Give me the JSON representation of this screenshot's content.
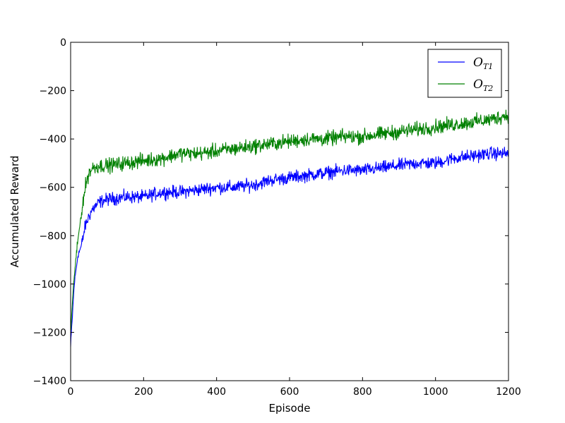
{
  "chart_data": {
    "type": "line",
    "xlabel": "Episode",
    "ylabel": "Accumulated Reward",
    "xlim": [
      0,
      1200
    ],
    "ylim": [
      -1400,
      0
    ],
    "xticks": [
      0,
      200,
      400,
      600,
      800,
      1000,
      1200
    ],
    "yticks": [
      0,
      -200,
      -400,
      -600,
      -800,
      -1000,
      -1200,
      -1400
    ],
    "grid": false,
    "legend_position": "top-right",
    "series": [
      {
        "name": "O_T1",
        "legend_main": "O",
        "legend_sub": "T1",
        "color": "#0000ff",
        "points": [
          [
            0,
            -1260
          ],
          [
            10,
            -1000
          ],
          [
            20,
            -880
          ],
          [
            30,
            -840
          ],
          [
            40,
            -760
          ],
          [
            50,
            -720
          ],
          [
            60,
            -690
          ],
          [
            80,
            -660
          ],
          [
            100,
            -650
          ],
          [
            150,
            -640
          ],
          [
            200,
            -640
          ],
          [
            250,
            -620
          ],
          [
            300,
            -620
          ],
          [
            350,
            -610
          ],
          [
            400,
            -600
          ],
          [
            450,
            -600
          ],
          [
            500,
            -590
          ],
          [
            550,
            -570
          ],
          [
            600,
            -560
          ],
          [
            650,
            -550
          ],
          [
            700,
            -540
          ],
          [
            750,
            -530
          ],
          [
            800,
            -530
          ],
          [
            850,
            -520
          ],
          [
            900,
            -510
          ],
          [
            950,
            -500
          ],
          [
            1000,
            -500
          ],
          [
            1050,
            -480
          ],
          [
            1100,
            -470
          ],
          [
            1150,
            -460
          ],
          [
            1200,
            -460
          ]
        ],
        "noise": 40
      },
      {
        "name": "O_T2",
        "legend_main": "O",
        "legend_sub": "T2",
        "color": "#008000",
        "points": [
          [
            0,
            -1200
          ],
          [
            10,
            -960
          ],
          [
            20,
            -820
          ],
          [
            30,
            -700
          ],
          [
            40,
            -600
          ],
          [
            50,
            -540
          ],
          [
            60,
            -520
          ],
          [
            80,
            -510
          ],
          [
            100,
            -510
          ],
          [
            150,
            -500
          ],
          [
            200,
            -490
          ],
          [
            250,
            -480
          ],
          [
            300,
            -460
          ],
          [
            350,
            -460
          ],
          [
            400,
            -450
          ],
          [
            450,
            -440
          ],
          [
            500,
            -430
          ],
          [
            550,
            -420
          ],
          [
            600,
            -410
          ],
          [
            650,
            -400
          ],
          [
            700,
            -400
          ],
          [
            750,
            -390
          ],
          [
            800,
            -390
          ],
          [
            850,
            -380
          ],
          [
            900,
            -370
          ],
          [
            950,
            -360
          ],
          [
            1000,
            -350
          ],
          [
            1050,
            -340
          ],
          [
            1100,
            -330
          ],
          [
            1150,
            -320
          ],
          [
            1200,
            -300
          ]
        ],
        "noise": 45
      }
    ]
  }
}
